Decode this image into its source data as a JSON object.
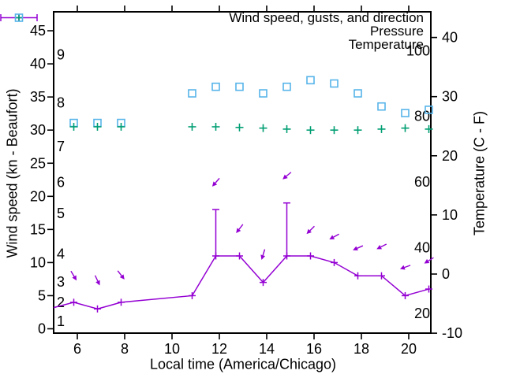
{
  "figure": {
    "background": "#ffffff",
    "border_color": "#000000",
    "text_color": "#000000"
  },
  "legend": {
    "entries": [
      {
        "label": "Wind speed, gusts, and direction",
        "marker": "errorbar-plus-sample",
        "color": "#9400d3"
      },
      {
        "label": "Pressure",
        "marker": "plus",
        "color": "#009e73"
      },
      {
        "label": "Temperature",
        "marker": "open-square",
        "color": "#56b4e9"
      }
    ]
  },
  "chart_data": {
    "type": "line",
    "title": "",
    "xlabel": "Local time (America/Chicago)",
    "ylabel": "Wind speed (kn - Beaufort)",
    "y2label": "Temperature (C - F)",
    "grid": false,
    "legend_position": "top-right-inside",
    "x_ticks": [
      6,
      8,
      10,
      12,
      14,
      16,
      18,
      20
    ],
    "y_ticks_kn": [
      0,
      5,
      10,
      15,
      20,
      25,
      30,
      35,
      40,
      45
    ],
    "beaufort_scale_labels": [
      "1",
      "2",
      "3",
      "4",
      "5",
      "6",
      "7",
      "8",
      "9"
    ],
    "y2_ticks_C": [
      -10,
      0,
      10,
      20,
      30,
      40
    ],
    "fahrenheit_scale_labels": [
      "20",
      "40",
      "60",
      "80",
      "100"
    ],
    "axis_ranges": {
      "x_hours": [
        5.0,
        20.93
      ],
      "y_kn": [
        -0.65,
        47.9
      ],
      "y2_C": [
        -10,
        44.3
      ]
    },
    "x_hours": [
      5.85,
      6.85,
      7.85,
      10.85,
      11.85,
      12.85,
      13.85,
      14.85,
      15.85,
      16.85,
      17.85,
      18.85,
      19.85,
      20.85
    ],
    "series": [
      {
        "name": "Wind speed, gusts, and direction",
        "color": "#9400d3",
        "marker": "plus",
        "style": "line-with-errorbars-and-direction-arrows",
        "speed_kn": [
          4,
          3,
          4,
          5,
          11,
          11,
          7,
          11,
          11,
          10,
          8,
          8,
          5,
          6
        ],
        "gust_kn": [
          null,
          null,
          null,
          null,
          18,
          null,
          null,
          19,
          null,
          null,
          null,
          null,
          null,
          null
        ],
        "lead_in": {
          "t": 5.0,
          "speed_kn": 3.2
        },
        "direction_arrows": [
          {
            "kn": 8.0,
            "angle_deg_screen": 59
          },
          {
            "kn": 7.3,
            "angle_deg_screen": 65
          },
          {
            "kn": 8.1,
            "angle_deg_screen": 52
          },
          null,
          {
            "kn": 22.1,
            "angle_deg_screen": 131
          },
          {
            "kn": 15.1,
            "angle_deg_screen": 128
          },
          {
            "kn": 11.2,
            "angle_deg_screen": 107
          },
          {
            "kn": 23.1,
            "angle_deg_screen": 140
          },
          {
            "kn": 14.9,
            "angle_deg_screen": 135
          },
          {
            "kn": 13.9,
            "angle_deg_screen": 151
          },
          {
            "kn": 12.2,
            "angle_deg_screen": 156
          },
          {
            "kn": 12.4,
            "angle_deg_screen": 153
          },
          {
            "kn": 9.3,
            "angle_deg_screen": 160
          },
          {
            "kn": 10.3,
            "angle_deg_screen": 148
          }
        ]
      },
      {
        "name": "Pressure",
        "color": "#009e73",
        "marker": "plus",
        "style": "points",
        "values_inHg": [
          30.5,
          30.5,
          30.5,
          30.5,
          30.5,
          30.4,
          30.3,
          30.15,
          30.0,
          30.0,
          30.0,
          30.15,
          30.3,
          30.15
        ]
      },
      {
        "name": "Temperature",
        "color": "#56b4e9",
        "marker": "open-square",
        "style": "points",
        "values_F": [
          78,
          78,
          78,
          87,
          89,
          89,
          87,
          89,
          91,
          90,
          87,
          83,
          81,
          82
        ]
      }
    ]
  }
}
